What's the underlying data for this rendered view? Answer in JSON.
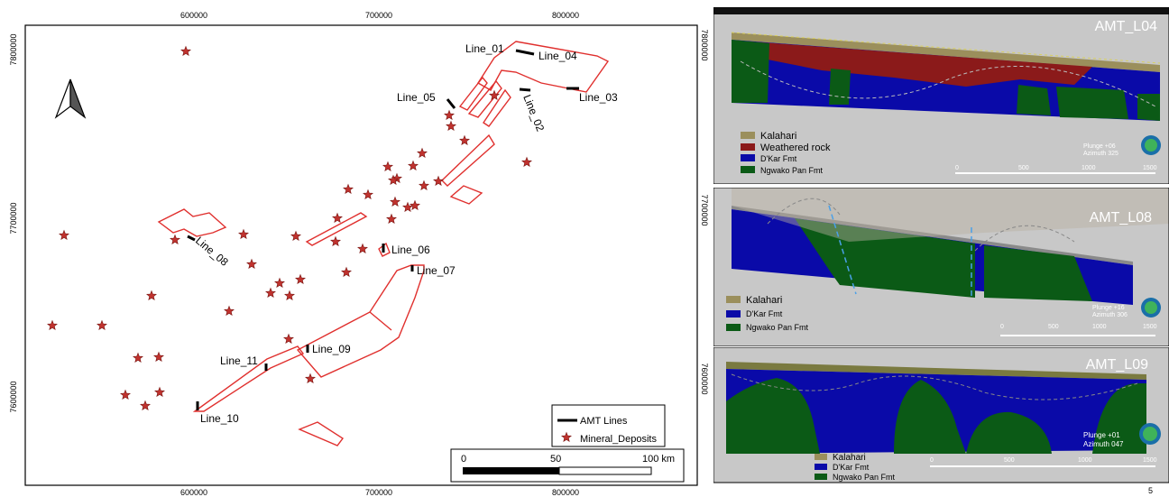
{
  "map": {
    "top_ticks": [
      "600000",
      "700000",
      "800000"
    ],
    "bottom_ticks": [
      "600000",
      "700000",
      "800000"
    ],
    "left_ticks": [
      "7800000",
      "7700000",
      "7600000"
    ],
    "right_ticks": [
      "7800000",
      "7700000",
      "7600000"
    ],
    "lines": [
      {
        "name": "Line_01"
      },
      {
        "name": "Line_02"
      },
      {
        "name": "Line_03"
      },
      {
        "name": "Line_04"
      },
      {
        "name": "Line_05"
      },
      {
        "name": "Line_06"
      },
      {
        "name": "Line_07"
      },
      {
        "name": "Line_08"
      },
      {
        "name": "Line_09"
      },
      {
        "name": "Line_10"
      },
      {
        "name": "Line_11"
      }
    ],
    "legend": {
      "amt_lines": "AMT Lines",
      "deposits": "Mineral_Deposits"
    },
    "scale": {
      "t0": "0",
      "t1": "50",
      "t2": "100 km"
    },
    "colors": {
      "polygon": "#e0302e",
      "star": "#c0322e",
      "line": "#000000"
    }
  },
  "sections": [
    {
      "title": "AMT_L04",
      "legend": [
        "Kalahari",
        "Weathered rock",
        "D'Kar Fmt",
        "Ngwako Pan Fmt"
      ],
      "plunge": "Plunge +06",
      "azimuth": "Azimuth 325",
      "scale": [
        "0",
        "500",
        "1000",
        "1500"
      ]
    },
    {
      "title": "AMT_L08",
      "legend": [
        "Kalahari",
        "D'Kar Fmt",
        "Ngwako Pan Fmt"
      ],
      "plunge": "Plunge +16",
      "azimuth": "Azimuth 306",
      "scale": [
        "0",
        "500",
        "1000",
        "1500"
      ]
    },
    {
      "title": "AMT_L09",
      "legend": [
        "Kalahari",
        "D'Kar Fmt",
        "Ngwako Pan Fmt"
      ],
      "plunge": "Plunge +01",
      "azimuth": "Azimuth 047",
      "scale": [
        "0",
        "500",
        "1000",
        "1500"
      ]
    }
  ],
  "page_number": "5",
  "colors": {
    "kalahari": "#9b8f5c",
    "weathered": "#8b1a1a",
    "dkar": "#0a0aa8",
    "ngwako": "#0b5a16",
    "sky": "#c8c8c8"
  }
}
